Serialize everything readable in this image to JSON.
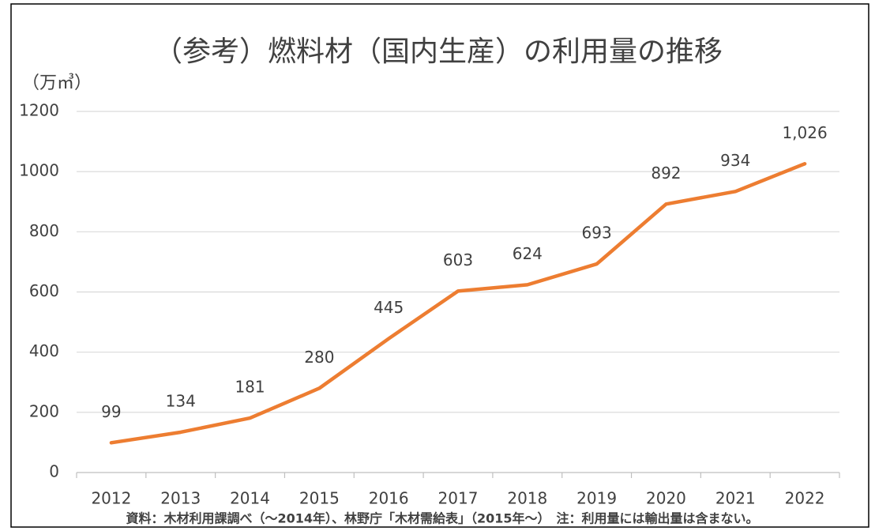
{
  "chart_data": {
    "type": "line",
    "title": "（参考）燃料材（国内生産）の利用量の推移",
    "y_label": "（万㎥）",
    "note": "資料：木材利用課調べ（～2014年）、林野庁「木材需給表」（2015年～）　注：利用量には輸出量は含まない。",
    "categories": [
      "2012",
      "2013",
      "2014",
      "2015",
      "2016",
      "2017",
      "2018",
      "2019",
      "2020",
      "2021",
      "2022"
    ],
    "values": [
      99,
      134,
      181,
      280,
      445,
      603,
      624,
      693,
      892,
      934,
      1026
    ],
    "value_labels": [
      "99",
      "134",
      "181",
      "280",
      "445",
      "603",
      "624",
      "693",
      "892",
      "934",
      "1,026"
    ],
    "color": "#ed7d31",
    "ylim": [
      0,
      1200
    ],
    "yticks": [
      0,
      200,
      400,
      600,
      800,
      1000,
      1200
    ],
    "grid": true
  }
}
